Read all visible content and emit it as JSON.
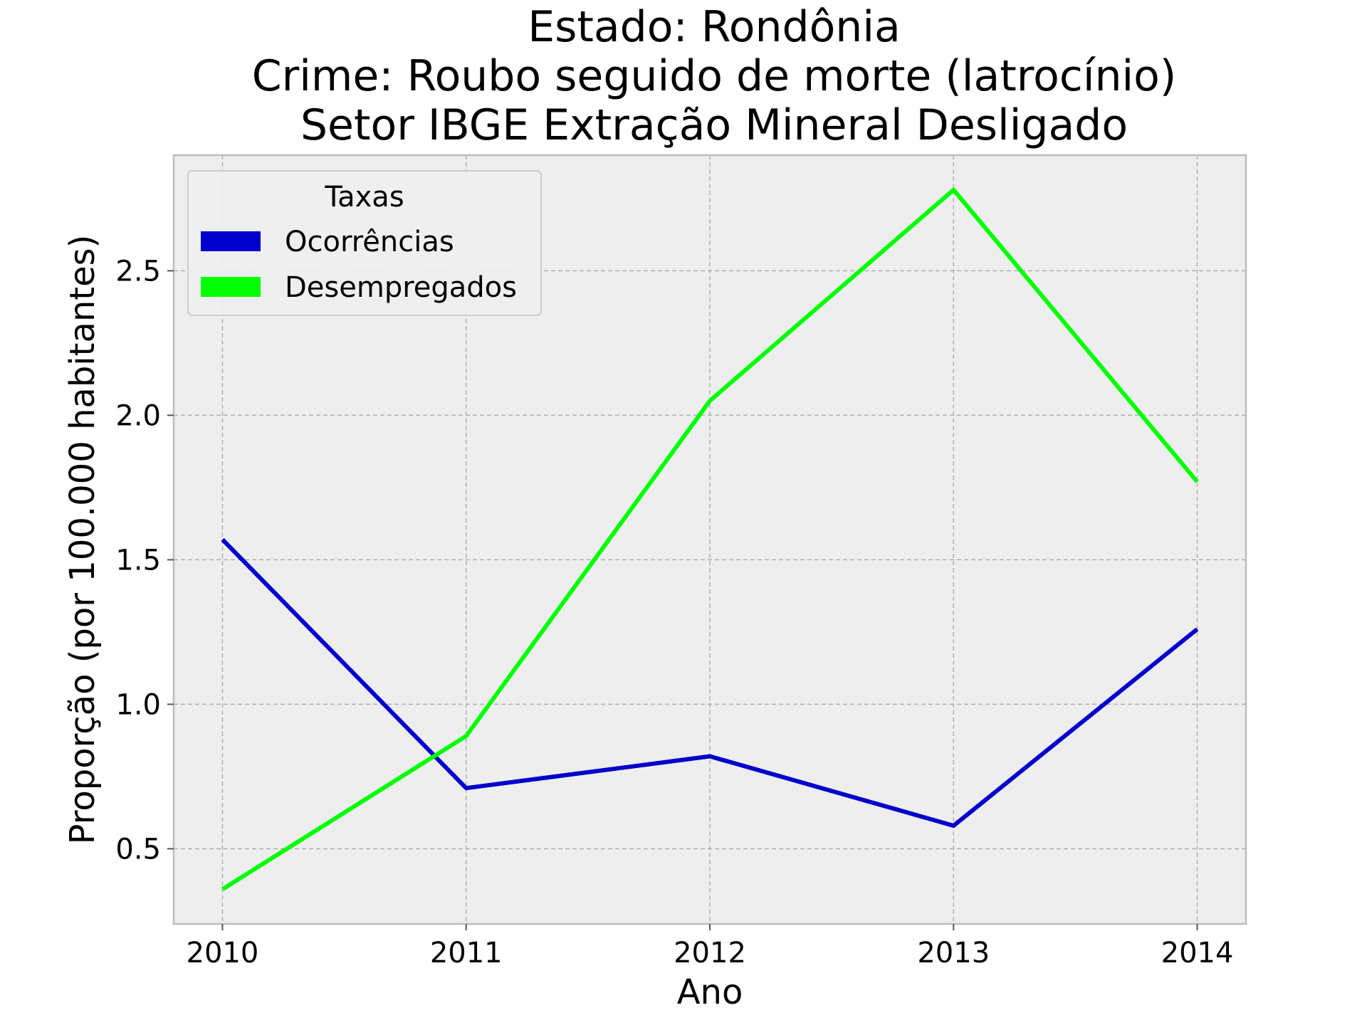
{
  "chart_data": {
    "type": "line",
    "title_lines": [
      "Estado: Rondônia",
      "Crime: Roubo seguido de morte (latrocínio)",
      "Setor IBGE  Extração Mineral   Desligado"
    ],
    "xlabel": "Ano",
    "ylabel": "Proporção (por 100.000 habitantes)",
    "x": [
      2010,
      2011,
      2012,
      2013,
      2014
    ],
    "x_tick_labels": [
      "2010",
      "2011",
      "2012",
      "2013",
      "2014"
    ],
    "y_ticks": [
      0.5,
      1.0,
      1.5,
      2.0,
      2.5
    ],
    "y_tick_labels": [
      "0.5",
      "1.0",
      "1.5",
      "2.0",
      "2.5"
    ],
    "xlim": [
      2009.8,
      2014.2
    ],
    "ylim": [
      0.24,
      2.9
    ],
    "grid": true,
    "legend": {
      "title": "Taxas",
      "placement": "top-left"
    },
    "series": [
      {
        "name": "Ocorrências",
        "color": "#0000cc",
        "values": [
          1.57,
          0.71,
          0.82,
          0.58,
          1.26
        ]
      },
      {
        "name": "Desempregados",
        "color": "#00ff00",
        "values": [
          0.36,
          0.89,
          2.05,
          2.78,
          1.77
        ]
      }
    ]
  }
}
